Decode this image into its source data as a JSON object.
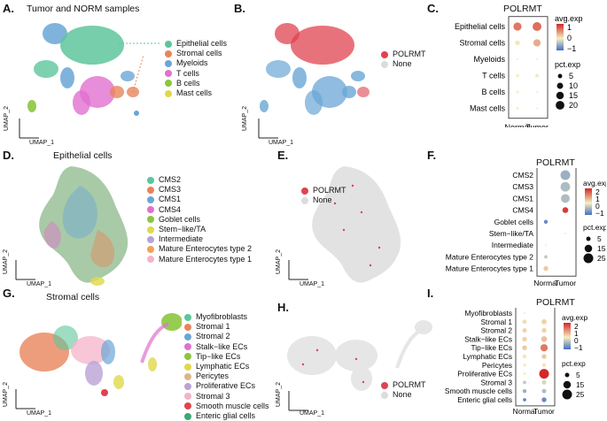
{
  "panels": {
    "A": {
      "letter": "A.",
      "title": "Tumor and NORM samples",
      "xaxis": "UMAP_1",
      "yaxis": "UMAP_2",
      "legend": [
        {
          "label": "Epithelial cells",
          "color": "#5ec59b"
        },
        {
          "label": "Stromal cells",
          "color": "#e9845a"
        },
        {
          "label": "Myeloids",
          "color": "#6aa6d6"
        },
        {
          "label": "T cells",
          "color": "#e171cf"
        },
        {
          "label": "B cells",
          "color": "#8cc63f"
        },
        {
          "label": "Mast cells",
          "color": "#e0d84a"
        }
      ]
    },
    "B": {
      "letter": "B.",
      "xaxis": "UMAP_1",
      "yaxis": "UMAP_2",
      "legend": [
        {
          "label": "POLRMT",
          "color": "#e0434f"
        },
        {
          "label": "None",
          "color": "#dcdcdc"
        }
      ]
    },
    "C": {
      "letter": "C.",
      "title": "POLRMT",
      "rows": [
        "Epithelial cells",
        "Stromal cells",
        "Myeloids",
        "T cells",
        "B cells",
        "Mast cells"
      ],
      "cols": [
        "Normal",
        "Tumor"
      ],
      "avg_title": "avg.exp",
      "avg_ticks": [
        "1",
        "0",
        "−1"
      ],
      "pct_title": "pct.exp",
      "pct_ticks": [
        "5",
        "10",
        "15",
        "20"
      ]
    },
    "D": {
      "letter": "D.",
      "title": "Epithelial cells",
      "xaxis": "UMAP_1",
      "yaxis": "UMAP_2",
      "legend": [
        {
          "label": "CMS2",
          "color": "#5ec59b"
        },
        {
          "label": "CMS3",
          "color": "#e9845a"
        },
        {
          "label": "CMS1",
          "color": "#6aa6d6"
        },
        {
          "label": "CMS4",
          "color": "#e171cf"
        },
        {
          "label": "Goblet cells",
          "color": "#8cc63f"
        },
        {
          "label": "Stem−like/TA",
          "color": "#e0d84a"
        },
        {
          "label": "Intermediate",
          "color": "#b9a3d6"
        },
        {
          "label": "Mature Enterocytes type 2",
          "color": "#f0a25a"
        },
        {
          "label": "Mature Enterocytes type 1",
          "color": "#f4b3c9"
        }
      ]
    },
    "E": {
      "letter": "E.",
      "xaxis": "UMAP_1",
      "yaxis": "UMAP_2",
      "legend": [
        {
          "label": "POLRMT",
          "color": "#e0434f"
        },
        {
          "label": "None",
          "color": "#dcdcdc"
        }
      ]
    },
    "F": {
      "letter": "F.",
      "title": "POLRMT",
      "rows": [
        "CMS2",
        "CMS3",
        "CMS1",
        "CMS4",
        "Goblet cells",
        "Stem−like/TA",
        "Intermediate",
        "Mature Enterocytes type 2",
        "Mature Enterocytes type 1"
      ],
      "cols": [
        "Normal",
        "Tumor"
      ],
      "avg_title": "avg.exp",
      "avg_ticks": [
        "2",
        "1",
        "0",
        "−1"
      ],
      "pct_title": "pct.exp",
      "pct_ticks": [
        "5",
        "15",
        "25"
      ]
    },
    "G": {
      "letter": "G.",
      "title": "Stromal cells",
      "xaxis": "UMAP_1",
      "yaxis": "UMAP_2",
      "legend": [
        {
          "label": "Myofibroblasts",
          "color": "#5ec59b"
        },
        {
          "label": "Stromal 1",
          "color": "#e9845a"
        },
        {
          "label": "Stromal 2",
          "color": "#6aa6d6"
        },
        {
          "label": "Stalk−like ECs",
          "color": "#e171cf"
        },
        {
          "label": "Tip−like ECs",
          "color": "#8cc63f"
        },
        {
          "label": "Lymphatic ECs",
          "color": "#e0d84a"
        },
        {
          "label": "Pericytes",
          "color": "#d9b88a"
        },
        {
          "label": "Proliferative ECs",
          "color": "#b9a3d6"
        },
        {
          "label": "Stromal 3",
          "color": "#f4b3c9"
        },
        {
          "label": "Smooth muscle cells",
          "color": "#e0434f"
        },
        {
          "label": "Enteric glial cells",
          "color": "#3aa876"
        }
      ]
    },
    "H": {
      "letter": "H.",
      "xaxis": "UMAP_1",
      "yaxis": "UMAP_2",
      "legend": [
        {
          "label": "POLRMT",
          "color": "#e0434f"
        },
        {
          "label": "None",
          "color": "#dcdcdc"
        }
      ]
    },
    "I": {
      "letter": "I.",
      "title": "POLRMT",
      "rows": [
        "Myofibroblasts",
        "Stromal 1",
        "Stromal 2",
        "Stalk−like ECs",
        "Tip−like ECs",
        "Lymphatic ECs",
        "Pericytes",
        "Proliferative ECs",
        "Stromal 3",
        "Smooth muscle cells",
        "Enteric glial cells"
      ],
      "cols": [
        "Normal",
        "Tumor"
      ],
      "avg_title": "avg.exp",
      "avg_ticks": [
        "2",
        "1",
        "0",
        "−1"
      ],
      "pct_title": "pct.exp",
      "pct_ticks": [
        "5",
        "15",
        "25"
      ]
    }
  },
  "chart_data": [
    {
      "type": "scatter",
      "panel": "C",
      "title": "POLRMT",
      "xlabel": "",
      "ylabel": "",
      "categories_x": [
        "Normal",
        "Tumor"
      ],
      "categories_y": [
        "Epithelial cells",
        "Stromal cells",
        "Myeloids",
        "T cells",
        "B cells",
        "Mast cells"
      ],
      "series": [
        {
          "name": "Normal",
          "avg_exp": [
            1.2,
            0.1,
            0.0,
            0.0,
            0.0,
            0.0
          ],
          "pct_exp": [
            18,
            6,
            1,
            3,
            2,
            2
          ]
        },
        {
          "name": "Tumor",
          "avg_exp": [
            1.3,
            0.7,
            0.0,
            0.1,
            0.0,
            0.0
          ],
          "pct_exp": [
            21,
            14,
            1,
            3,
            1,
            1
          ]
        }
      ]
    },
    {
      "type": "scatter",
      "panel": "F",
      "title": "POLRMT",
      "categories_x": [
        "Normal",
        "Tumor"
      ],
      "categories_y": [
        "CMS2",
        "CMS3",
        "CMS1",
        "CMS4",
        "Goblet cells",
        "Stem−like/TA",
        "Intermediate",
        "Mature Enterocytes type 2",
        "Mature Enterocytes type 1"
      ],
      "series": [
        {
          "name": "Normal",
          "avg_exp": [
            null,
            null,
            null,
            null,
            -0.8,
            null,
            0.0,
            -0.3,
            0.4
          ],
          "pct_exp": [
            null,
            null,
            null,
            null,
            4,
            null,
            1,
            3,
            6
          ]
        },
        {
          "name": "Tumor",
          "avg_exp": [
            -0.5,
            -0.4,
            -0.4,
            1.8,
            null,
            0.0,
            null,
            null,
            null
          ],
          "pct_exp": [
            25,
            24,
            20,
            9,
            null,
            1,
            null,
            null,
            null
          ]
        }
      ]
    },
    {
      "type": "scatter",
      "panel": "I",
      "title": "POLRMT",
      "categories_x": [
        "Normal",
        "Tumor"
      ],
      "categories_y": [
        "Myofibroblasts",
        "Stromal 1",
        "Stromal 2",
        "Stalk−like ECs",
        "Tip−like ECs",
        "Lymphatic ECs",
        "Pericytes",
        "Proliferative ECs",
        "Stromal 3",
        "Smooth muscle cells",
        "Enteric glial cells"
      ],
      "series": [
        {
          "name": "Normal",
          "avg_exp": [
            0.0,
            0.2,
            0.3,
            0.3,
            0.4,
            0.1,
            0.0,
            0.0,
            -0.3,
            -0.5,
            -0.8
          ],
          "pct_exp": [
            1,
            5,
            5,
            6,
            6,
            4,
            3,
            2,
            3,
            4,
            3
          ]
        },
        {
          "name": "Tumor",
          "avg_exp": [
            null,
            0.3,
            0.3,
            0.5,
            1.2,
            0.4,
            0.1,
            2.2,
            -0.2,
            -0.4,
            -0.8
          ],
          "pct_exp": [
            null,
            7,
            6,
            9,
            14,
            6,
            4,
            25,
            5,
            5,
            6
          ]
        }
      ]
    }
  ]
}
